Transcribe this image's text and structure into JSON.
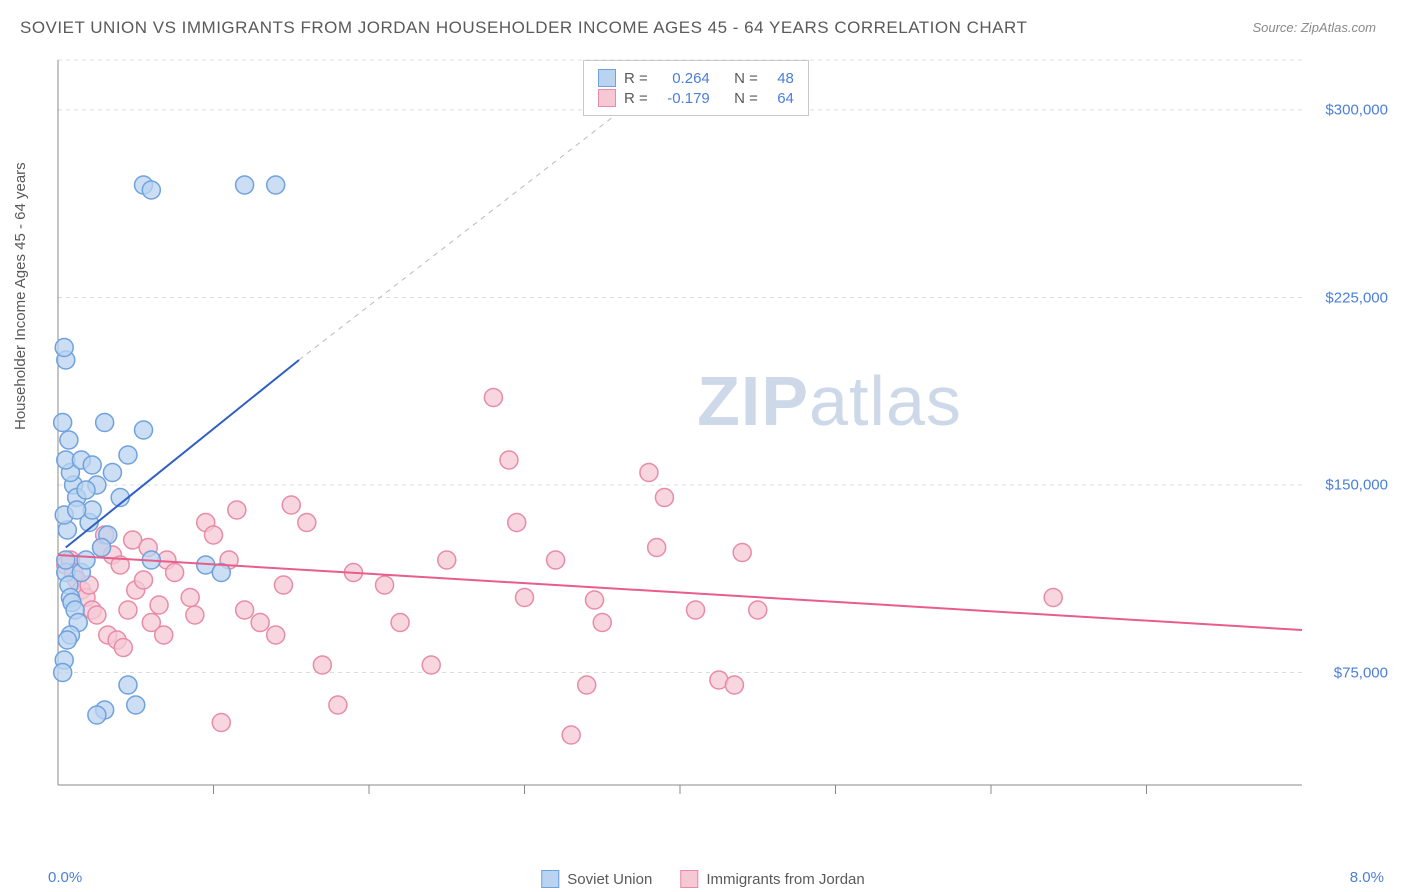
{
  "title": "SOVIET UNION VS IMMIGRANTS FROM JORDAN HOUSEHOLDER INCOME AGES 45 - 64 YEARS CORRELATION CHART",
  "source": "Source: ZipAtlas.com",
  "watermark_bold": "ZIP",
  "watermark_rest": "atlas",
  "chart": {
    "type": "scatter",
    "background_color": "#ffffff",
    "grid_color": "#dcdcdc",
    "axis_color": "#888888",
    "y_label": "Householder Income Ages 45 - 64 years",
    "y_label_color": "#5a5a5a",
    "x_min": 0.0,
    "x_max": 8.0,
    "x_min_label": "0.0%",
    "x_max_label": "8.0%",
    "x_ticks": [
      1,
      2,
      3,
      4,
      5,
      6,
      7
    ],
    "y_min": 30000,
    "y_max": 320000,
    "y_ticks": [
      75000,
      150000,
      225000,
      300000
    ],
    "y_tick_labels": [
      "$75,000",
      "$150,000",
      "$225,000",
      "$300,000"
    ],
    "marker_radius": 9,
    "marker_stroke_width": 1.5,
    "series": [
      {
        "name": "Soviet Union",
        "fill": "#b9d3f0",
        "stroke": "#6fa2dd",
        "R": "0.264",
        "N": "48",
        "trend": {
          "x1": 0.05,
          "y1": 125000,
          "x2": 1.55,
          "y2": 200000,
          "dash_x2": 4.0,
          "dash_y2": 318000,
          "color": "#2f5fc4",
          "width": 2
        },
        "points": [
          [
            0.05,
            115000
          ],
          [
            0.05,
            120000
          ],
          [
            0.07,
            110000
          ],
          [
            0.08,
            105000
          ],
          [
            0.06,
            132000
          ],
          [
            0.04,
            138000
          ],
          [
            0.1,
            150000
          ],
          [
            0.12,
            145000
          ],
          [
            0.08,
            155000
          ],
          [
            0.05,
            160000
          ],
          [
            0.15,
            160000
          ],
          [
            0.07,
            168000
          ],
          [
            0.03,
            175000
          ],
          [
            0.05,
            200000
          ],
          [
            0.04,
            205000
          ],
          [
            0.09,
            103000
          ],
          [
            0.11,
            100000
          ],
          [
            0.13,
            95000
          ],
          [
            0.08,
            90000
          ],
          [
            0.06,
            88000
          ],
          [
            0.04,
            80000
          ],
          [
            0.03,
            75000
          ],
          [
            0.15,
            115000
          ],
          [
            0.18,
            120000
          ],
          [
            0.2,
            135000
          ],
          [
            0.22,
            140000
          ],
          [
            0.25,
            150000
          ],
          [
            0.3,
            175000
          ],
          [
            0.35,
            155000
          ],
          [
            0.4,
            145000
          ],
          [
            0.32,
            130000
          ],
          [
            0.28,
            125000
          ],
          [
            0.55,
            172000
          ],
          [
            0.45,
            162000
          ],
          [
            0.95,
            118000
          ],
          [
            0.6,
            120000
          ],
          [
            0.3,
            60000
          ],
          [
            0.25,
            58000
          ],
          [
            0.45,
            70000
          ],
          [
            0.5,
            62000
          ],
          [
            1.05,
            115000
          ],
          [
            0.55,
            270000
          ],
          [
            0.6,
            268000
          ],
          [
            1.2,
            270000
          ],
          [
            1.4,
            270000
          ],
          [
            0.12,
            140000
          ],
          [
            0.18,
            148000
          ],
          [
            0.22,
            158000
          ]
        ]
      },
      {
        "name": "Immigrants from Jordan",
        "fill": "#f6c8d5",
        "stroke": "#e88ba8",
        "R": "-0.179",
        "N": "64",
        "trend": {
          "x1": 0.0,
          "y1": 122000,
          "x2": 8.0,
          "y2": 92000,
          "color": "#e75d8b",
          "width": 2
        },
        "points": [
          [
            0.05,
            118000
          ],
          [
            0.08,
            120000
          ],
          [
            0.1,
            115000
          ],
          [
            0.12,
            112000
          ],
          [
            0.15,
            108000
          ],
          [
            0.18,
            105000
          ],
          [
            0.2,
            110000
          ],
          [
            0.22,
            100000
          ],
          [
            0.25,
            98000
          ],
          [
            0.28,
            125000
          ],
          [
            0.3,
            130000
          ],
          [
            0.35,
            122000
          ],
          [
            0.4,
            118000
          ],
          [
            0.45,
            100000
          ],
          [
            0.5,
            108000
          ],
          [
            0.55,
            112000
          ],
          [
            0.6,
            95000
          ],
          [
            0.65,
            102000
          ],
          [
            0.7,
            120000
          ],
          [
            0.75,
            115000
          ],
          [
            0.85,
            105000
          ],
          [
            0.95,
            135000
          ],
          [
            1.0,
            130000
          ],
          [
            1.1,
            120000
          ],
          [
            1.15,
            140000
          ],
          [
            1.2,
            100000
          ],
          [
            1.3,
            95000
          ],
          [
            1.4,
            90000
          ],
          [
            1.45,
            110000
          ],
          [
            1.5,
            142000
          ],
          [
            1.6,
            135000
          ],
          [
            1.7,
            78000
          ],
          [
            1.8,
            62000
          ],
          [
            1.9,
            115000
          ],
          [
            2.1,
            110000
          ],
          [
            2.2,
            95000
          ],
          [
            2.4,
            78000
          ],
          [
            2.5,
            120000
          ],
          [
            2.8,
            185000
          ],
          [
            2.9,
            160000
          ],
          [
            2.95,
            135000
          ],
          [
            3.0,
            105000
          ],
          [
            3.2,
            120000
          ],
          [
            3.3,
            50000
          ],
          [
            3.4,
            70000
          ],
          [
            3.45,
            104000
          ],
          [
            3.5,
            95000
          ],
          [
            3.8,
            155000
          ],
          [
            3.85,
            125000
          ],
          [
            3.9,
            145000
          ],
          [
            4.1,
            100000
          ],
          [
            4.25,
            72000
          ],
          [
            4.35,
            70000
          ],
          [
            4.4,
            123000
          ],
          [
            4.5,
            100000
          ],
          [
            6.4,
            105000
          ],
          [
            0.32,
            90000
          ],
          [
            0.38,
            88000
          ],
          [
            0.42,
            85000
          ],
          [
            0.48,
            128000
          ],
          [
            0.58,
            125000
          ],
          [
            0.68,
            90000
          ],
          [
            0.88,
            98000
          ],
          [
            1.05,
            55000
          ]
        ]
      }
    ]
  },
  "stat_box": {
    "R_label": "R =",
    "N_label": "N ="
  },
  "legend": {
    "items": [
      {
        "label": "Soviet Union",
        "fill": "#b9d3f0",
        "stroke": "#6fa2dd"
      },
      {
        "label": "Immigrants from Jordan",
        "fill": "#f6c8d5",
        "stroke": "#e88ba8"
      }
    ]
  }
}
